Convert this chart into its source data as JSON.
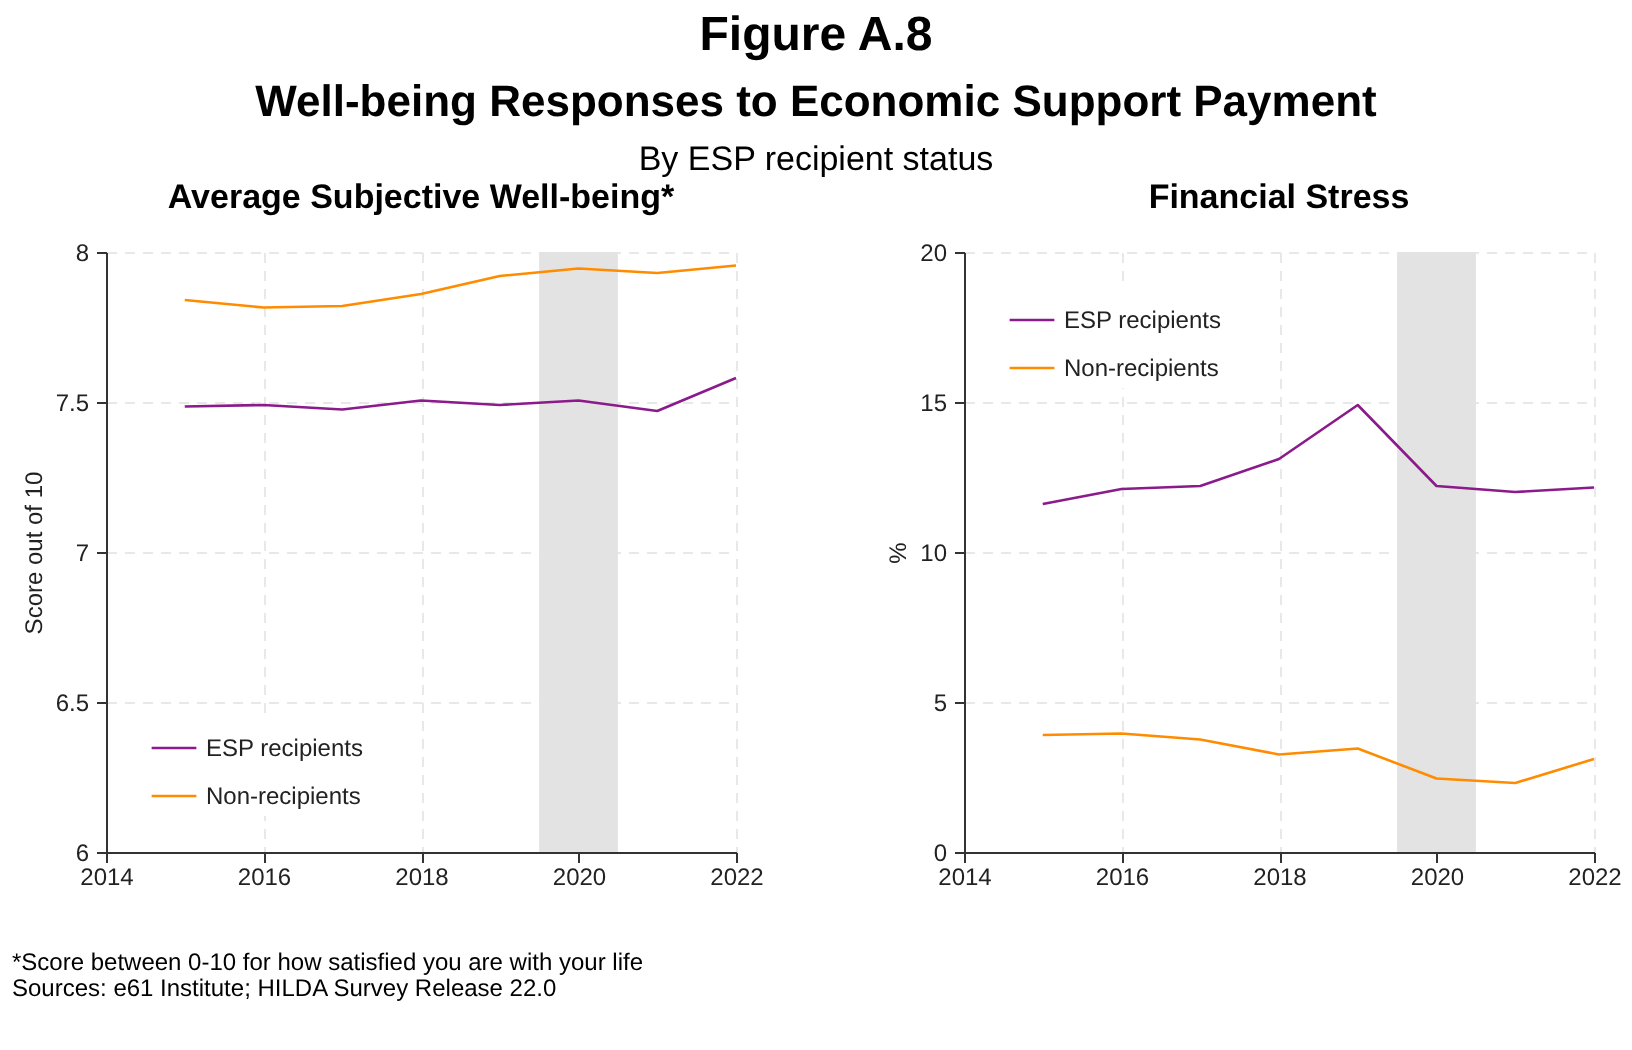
{
  "chart_data": [
    {
      "type": "line",
      "title": "Average Subjective Well-being*",
      "ylabel": "Score out of 10",
      "annotations": [
        "Figure A.8",
        "Well-being Responses to Economic Support Payment",
        "By ESP recipient status",
        "*Score between 0-10 for how satisfied you are with your life",
        "Sources: e61 Institute; HILDA Survey Release 22.0"
      ],
      "x": [
        2015,
        2016,
        2017,
        2018,
        2019,
        2020,
        2021,
        2022
      ],
      "series": [
        {
          "name": "ESP recipients",
          "color": "#8b1a8b",
          "values": [
            7.485,
            7.49,
            7.475,
            7.505,
            7.49,
            7.505,
            7.47,
            7.58
          ]
        },
        {
          "name": "Non-recipients",
          "color": "#ff8c00",
          "values": [
            7.84,
            7.815,
            7.82,
            7.86,
            7.92,
            7.945,
            7.93,
            7.955
          ]
        }
      ],
      "xlim": [
        2014,
        2022
      ],
      "xticks": [
        2014,
        2016,
        2018,
        2020,
        2022
      ],
      "ylim": [
        6,
        8
      ],
      "yticks": [
        6,
        6.5,
        7,
        7.5,
        8
      ],
      "bands": [
        {
          "axis": "x",
          "from": 2019.5,
          "to": 2020.5,
          "label": null,
          "color": "#e3e3e3"
        }
      ],
      "grid": true,
      "legend": "bottom left",
      "line_style": "solid",
      "marker": "none"
    },
    {
      "type": "line",
      "title": "Financial Stress",
      "ylabel": "%",
      "x": [
        2015,
        2016,
        2017,
        2018,
        2019,
        2020,
        2021,
        2022
      ],
      "series": [
        {
          "name": "ESP recipients",
          "color": "#8b1a8b",
          "values": [
            11.6,
            12.1,
            12.2,
            13.1,
            14.9,
            12.2,
            12.0,
            12.15
          ]
        },
        {
          "name": "Non-recipients",
          "color": "#ff8c00",
          "values": [
            3.9,
            3.95,
            3.75,
            3.25,
            3.45,
            2.45,
            2.3,
            3.1
          ]
        }
      ],
      "xlim": [
        2014,
        2022
      ],
      "xticks": [
        2014,
        2016,
        2018,
        2020,
        2022
      ],
      "ylim": [
        0,
        20
      ],
      "yticks": [
        0,
        5,
        10,
        15,
        20
      ],
      "bands": [
        {
          "axis": "x",
          "from": 2019.5,
          "to": 2020.5,
          "label": null,
          "color": "#e3e3e3"
        }
      ],
      "grid": true,
      "legend": "top left",
      "line_style": "solid",
      "marker": "none"
    }
  ]
}
